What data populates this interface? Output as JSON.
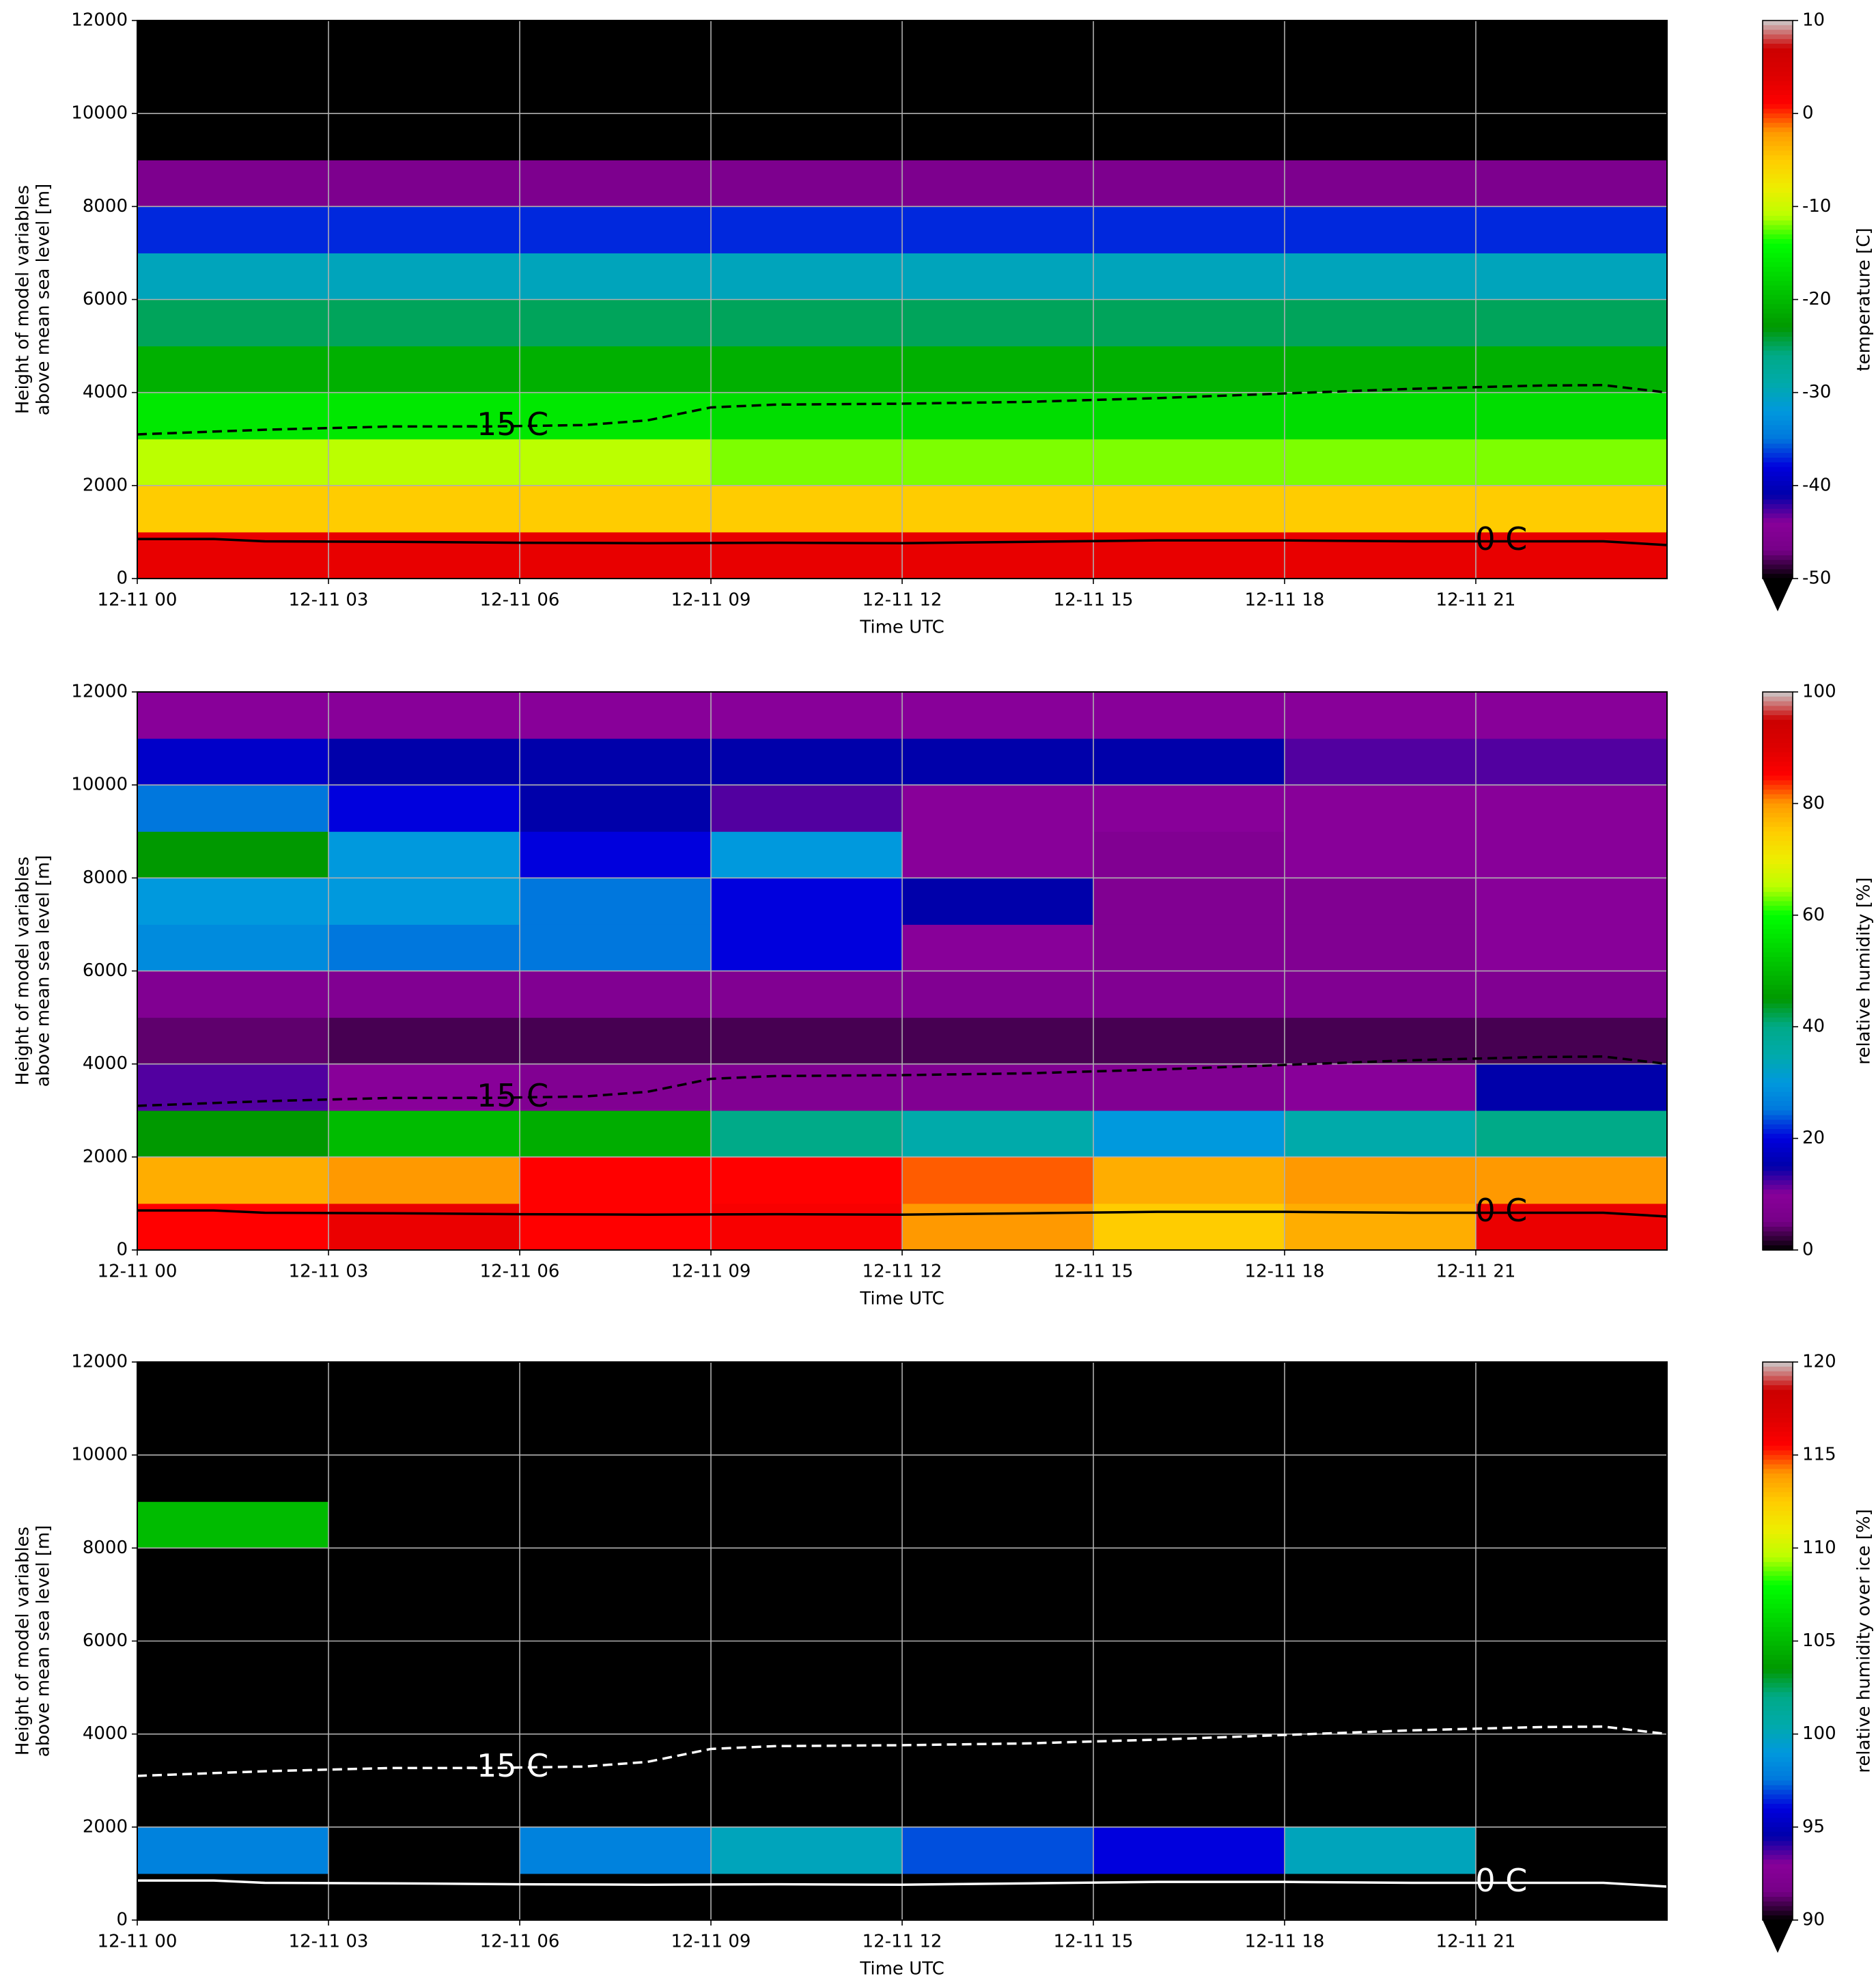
{
  "chart_data": [
    {
      "type": "heatmap",
      "xlabel": "Time UTC",
      "ylabel": [
        "Height of model variables",
        "above mean sea level [m]"
      ],
      "xlim": [
        0,
        24
      ],
      "xticks": [
        {
          "value": 0,
          "label": "12-11 00"
        },
        {
          "value": 3,
          "label": "12-11 03"
        },
        {
          "value": 6,
          "label": "12-11 06"
        },
        {
          "value": 9,
          "label": "12-11 09"
        },
        {
          "value": 12,
          "label": "12-11 12"
        },
        {
          "value": 15,
          "label": "12-11 15"
        },
        {
          "value": 18,
          "label": "12-11 18"
        },
        {
          "value": 21,
          "label": "12-11 21"
        }
      ],
      "ylim": [
        0,
        12000
      ],
      "yticks": [
        0,
        2000,
        4000,
        6000,
        8000,
        10000,
        12000
      ],
      "grid": true,
      "x": [
        1.5,
        4.5,
        7.5,
        10.5,
        13.5,
        16.5,
        19.5,
        22.5
      ],
      "y": [
        500,
        1500,
        2500,
        3500,
        4500,
        5500,
        6500,
        7500,
        8500,
        9500,
        10500,
        11500
      ],
      "z": [
        [
          3,
          3,
          3,
          3,
          3,
          3,
          3,
          3
        ],
        [
          -5,
          -5,
          -5,
          -5,
          -5,
          -5,
          -5,
          -5
        ],
        [
          -11,
          -11,
          -11,
          -12,
          -12,
          -12,
          -12,
          -12
        ],
        [
          -16,
          -16,
          -16,
          -17,
          -17,
          -17,
          -17,
          -17
        ],
        [
          -21,
          -21,
          -21,
          -21,
          -21,
          -21,
          -21,
          -21
        ],
        [
          -25,
          -25,
          -25,
          -25,
          -25,
          -25,
          -25,
          -25
        ],
        [
          -30,
          -30,
          -30,
          -30,
          -30,
          -30,
          -30,
          -30
        ],
        [
          -37,
          -37,
          -37,
          -37,
          -37,
          -37,
          -37,
          -37
        ],
        [
          -46,
          -46,
          -46,
          -46,
          -46,
          -46,
          -46,
          -46
        ],
        [
          -55,
          -55,
          -55,
          -55,
          -55,
          -55,
          -55,
          -55
        ],
        [
          -57,
          -57,
          -57,
          -57,
          -57,
          -57,
          -57,
          -57
        ],
        [
          -58,
          -58,
          -58,
          -58,
          -58,
          -58,
          -58,
          -58
        ]
      ],
      "colorbar": {
        "label": "temperature [C]",
        "lim": [
          -50,
          10
        ],
        "ticks": [
          -50,
          -40,
          -30,
          -20,
          -10,
          0,
          10
        ],
        "extend": "min"
      },
      "contour_color": "#000000",
      "contours": [
        {
          "label": "0 C",
          "style": "solid",
          "x": [
            0,
            1.2,
            2,
            4,
            6,
            8,
            10,
            12,
            14,
            16,
            18,
            20,
            22,
            23,
            24
          ],
          "values": [
            850,
            850,
            800,
            790,
            770,
            760,
            770,
            760,
            790,
            820,
            820,
            800,
            800,
            800,
            720
          ]
        },
        {
          "label": "-15 C",
          "style": "dashed",
          "x": [
            0,
            2,
            4,
            5.5,
            7,
            8,
            9,
            10,
            12,
            14,
            16,
            18,
            20,
            22,
            23,
            24
          ],
          "values": [
            3100,
            3200,
            3270,
            3270,
            3300,
            3400,
            3680,
            3740,
            3760,
            3800,
            3880,
            3980,
            4080,
            4150,
            4160,
            4000
          ]
        }
      ]
    },
    {
      "type": "heatmap",
      "xlabel": "Time UTC",
      "ylabel": [
        "Height of model variables",
        "above mean sea level [m]"
      ],
      "xlim": [
        0,
        24
      ],
      "xticks": [
        {
          "value": 0,
          "label": "12-11 00"
        },
        {
          "value": 3,
          "label": "12-11 03"
        },
        {
          "value": 6,
          "label": "12-11 06"
        },
        {
          "value": 9,
          "label": "12-11 09"
        },
        {
          "value": 12,
          "label": "12-11 12"
        },
        {
          "value": 15,
          "label": "12-11 15"
        },
        {
          "value": 18,
          "label": "12-11 18"
        },
        {
          "value": 21,
          "label": "12-11 21"
        }
      ],
      "ylim": [
        0,
        12000
      ],
      "yticks": [
        0,
        2000,
        4000,
        6000,
        8000,
        10000,
        12000
      ],
      "grid": true,
      "x": [
        1.5,
        4.5,
        7.5,
        10.5,
        13.5,
        16.5,
        19.5,
        22.5
      ],
      "y": [
        500,
        1500,
        2500,
        3500,
        4500,
        5500,
        6500,
        7500,
        8500,
        9500,
        10500,
        11500
      ],
      "z": [
        [
          85,
          88,
          85,
          86,
          80,
          75,
          78,
          88
        ],
        [
          78,
          80,
          85,
          85,
          82,
          78,
          80,
          80
        ],
        [
          45,
          50,
          48,
          40,
          35,
          30,
          35,
          40
        ],
        [
          12,
          10,
          8,
          8,
          8,
          8,
          10,
          15
        ],
        [
          4,
          3,
          3,
          3,
          3,
          3,
          3,
          3
        ],
        [
          8,
          8,
          8,
          8,
          8,
          8,
          8,
          8
        ],
        [
          28,
          25,
          25,
          20,
          10,
          8,
          8,
          10
        ],
        [
          30,
          30,
          25,
          20,
          15,
          8,
          8,
          10
        ],
        [
          45,
          30,
          20,
          30,
          10,
          8,
          10,
          10
        ],
        [
          25,
          20,
          15,
          12,
          10,
          10,
          10,
          10
        ],
        [
          18,
          15,
          15,
          15,
          15,
          15,
          12,
          12
        ],
        [
          10,
          10,
          10,
          10,
          10,
          10,
          10,
          10
        ]
      ],
      "colorbar": {
        "label": "relative humidity [%]",
        "lim": [
          0,
          100
        ],
        "ticks": [
          0,
          20,
          40,
          60,
          80,
          100
        ]
      },
      "contour_color": "#000000",
      "contours": [
        {
          "label": "0 C",
          "style": "solid",
          "x": [
            0,
            1.2,
            2,
            4,
            6,
            8,
            10,
            12,
            14,
            16,
            18,
            20,
            22,
            23,
            24
          ],
          "values": [
            850,
            850,
            800,
            790,
            770,
            760,
            770,
            760,
            790,
            820,
            820,
            800,
            800,
            800,
            720
          ]
        },
        {
          "label": "-15 C",
          "style": "dashed",
          "x": [
            0,
            2,
            4,
            5.5,
            7,
            8,
            9,
            10,
            12,
            14,
            16,
            18,
            20,
            22,
            23,
            24
          ],
          "values": [
            3100,
            3200,
            3270,
            3270,
            3300,
            3400,
            3680,
            3740,
            3760,
            3800,
            3880,
            3980,
            4080,
            4150,
            4160,
            4000
          ]
        }
      ]
    },
    {
      "type": "heatmap",
      "xlabel": "Time UTC",
      "ylabel": [
        "Height of model variables",
        "above mean sea level [m]"
      ],
      "xlim": [
        0,
        24
      ],
      "xticks": [
        {
          "value": 0,
          "label": "12-11 00"
        },
        {
          "value": 3,
          "label": "12-11 03"
        },
        {
          "value": 6,
          "label": "12-11 06"
        },
        {
          "value": 9,
          "label": "12-11 09"
        },
        {
          "value": 12,
          "label": "12-11 12"
        },
        {
          "value": 15,
          "label": "12-11 15"
        },
        {
          "value": 18,
          "label": "12-11 18"
        },
        {
          "value": 21,
          "label": "12-11 21"
        }
      ],
      "ylim": [
        0,
        12000
      ],
      "yticks": [
        0,
        2000,
        4000,
        6000,
        8000,
        10000,
        12000
      ],
      "grid": true,
      "x": [
        1.5,
        4.5,
        7.5,
        10.5,
        13.5,
        16.5,
        19.5,
        22.5
      ],
      "y": [
        500,
        1500,
        2500,
        3500,
        4500,
        5500,
        6500,
        7500,
        8500,
        9500,
        10500,
        11500
      ],
      "z": [
        [
          85,
          85,
          85,
          85,
          85,
          85,
          85,
          85
        ],
        [
          98,
          85,
          98,
          100,
          97,
          96,
          100,
          85
        ],
        [
          85,
          85,
          85,
          85,
          85,
          85,
          85,
          85
        ],
        [
          85,
          85,
          85,
          85,
          85,
          85,
          85,
          85
        ],
        [
          85,
          85,
          85,
          85,
          85,
          85,
          85,
          85
        ],
        [
          85,
          85,
          85,
          85,
          85,
          85,
          85,
          85
        ],
        [
          85,
          85,
          85,
          85,
          85,
          85,
          85,
          85
        ],
        [
          85,
          85,
          85,
          85,
          85,
          85,
          85,
          85
        ],
        [
          105,
          85,
          85,
          85,
          85,
          85,
          85,
          85
        ],
        [
          85,
          85,
          85,
          85,
          85,
          85,
          85,
          85
        ],
        [
          85,
          85,
          85,
          85,
          85,
          85,
          85,
          85
        ],
        [
          85,
          85,
          85,
          85,
          85,
          85,
          85,
          85
        ]
      ],
      "colorbar": {
        "label": "relative humidity over ice [%]",
        "lim": [
          90,
          120
        ],
        "ticks": [
          90,
          95,
          100,
          105,
          110,
          115,
          120
        ],
        "extend": "min"
      },
      "contour_color": "#ffffff",
      "contours": [
        {
          "label": "0 C",
          "style": "solid",
          "x": [
            0,
            1.2,
            2,
            4,
            6,
            8,
            10,
            12,
            14,
            16,
            18,
            20,
            22,
            23,
            24
          ],
          "values": [
            850,
            850,
            800,
            790,
            770,
            760,
            770,
            760,
            790,
            820,
            820,
            800,
            800,
            800,
            720
          ]
        },
        {
          "label": "-15 C",
          "style": "dashed",
          "x": [
            0,
            2,
            4,
            5.5,
            7,
            8,
            9,
            10,
            12,
            14,
            16,
            18,
            20,
            22,
            23,
            24
          ],
          "values": [
            3100,
            3200,
            3270,
            3270,
            3300,
            3400,
            3680,
            3740,
            3760,
            3800,
            3880,
            3980,
            4080,
            4150,
            4160,
            4000
          ]
        }
      ]
    }
  ]
}
